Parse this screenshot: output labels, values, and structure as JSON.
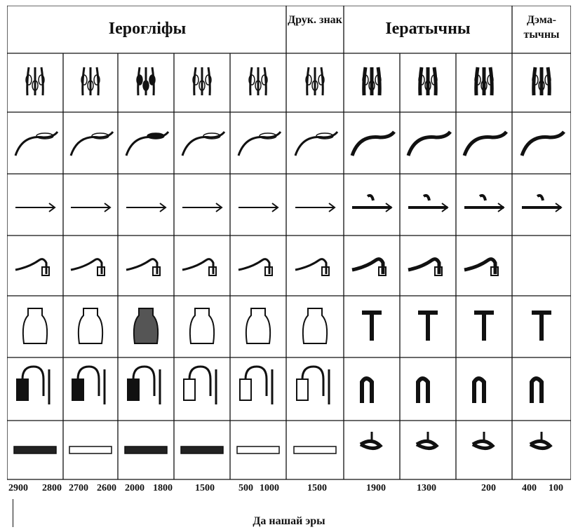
{
  "headers": {
    "hieroglyphs": "Іерогліфы",
    "print_sign": "Друк. знак",
    "hieratic": "Іератычны",
    "demotic": "Дэма-тычны"
  },
  "dates": [
    "2900",
    "2800",
    "2700",
    "2600",
    "2000",
    "1800",
    "1500",
    "500",
    "1000",
    "1500",
    "1900",
    "1300",
    "200",
    "400",
    "100"
  ],
  "caption": "Да нашай эры",
  "rows": [
    {
      "name": "row-flowers",
      "cells": [
        "glyph",
        "glyph",
        "glyph",
        "glyph",
        "glyph",
        "glyph",
        "glyph",
        "glyph",
        "glyph",
        "glyph"
      ]
    },
    {
      "name": "row-hooks",
      "cells": [
        "glyph",
        "glyph",
        "glyph",
        "glyph",
        "glyph",
        "glyph",
        "glyph",
        "glyph",
        "glyph",
        "glyph"
      ]
    },
    {
      "name": "row-arrows",
      "cells": [
        "glyph",
        "glyph",
        "glyph",
        "glyph",
        "glyph",
        "glyph",
        "glyph",
        "glyph",
        "glyph",
        "glyph"
      ]
    },
    {
      "name": "row-ploughs",
      "cells": [
        "glyph",
        "glyph",
        "glyph",
        "glyph",
        "glyph",
        "glyph",
        "glyph",
        "glyph",
        "glyph",
        "empty"
      ]
    },
    {
      "name": "row-vessels",
      "cells": [
        "glyph",
        "glyph",
        "glyph",
        "glyph",
        "glyph",
        "glyph",
        "glyph",
        "glyph",
        "glyph",
        "glyph"
      ]
    },
    {
      "name": "row-scribe-kits",
      "cells": [
        "glyph",
        "glyph",
        "glyph",
        "glyph",
        "glyph",
        "glyph",
        "glyph",
        "glyph",
        "glyph",
        "glyph"
      ]
    },
    {
      "name": "row-boards",
      "cells": [
        "glyph",
        "glyph",
        "glyph",
        "glyph",
        "glyph",
        "glyph",
        "glyph",
        "glyph",
        "glyph",
        "glyph"
      ]
    }
  ]
}
